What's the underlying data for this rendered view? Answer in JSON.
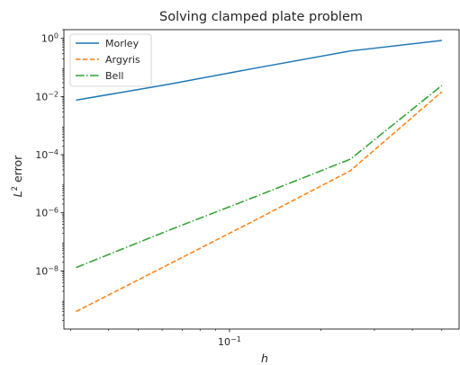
{
  "chart_data": {
    "type": "line",
    "title": "Solving clamped plate problem",
    "xlabel": "h",
    "ylabel": "L² error",
    "ylabel_parts": {
      "prefix": "L",
      "sup": "2",
      "suffix": " error"
    },
    "x_scale": "log",
    "y_scale": "log",
    "xlim": [
      0.0285,
      0.57
    ],
    "ylim": [
      1e-10,
      2.0
    ],
    "grid": false,
    "legend_position": "upper-left",
    "x_ticks": [
      {
        "value": 0.1,
        "base": "10",
        "exp": "−1"
      }
    ],
    "y_ticks": [
      {
        "value": 1e-08,
        "base": "10",
        "exp": "−8"
      },
      {
        "value": 1e-06,
        "base": "10",
        "exp": "−6"
      },
      {
        "value": 0.0001,
        "base": "10",
        "exp": "−4"
      },
      {
        "value": 0.01,
        "base": "10",
        "exp": "−2"
      },
      {
        "value": 1.0,
        "base": "10",
        "exp": "0"
      }
    ],
    "series": [
      {
        "name": "Morley",
        "color": "#1f77b4",
        "dash": "solid",
        "x": [
          0.03125,
          0.0625,
          0.125,
          0.25,
          0.5
        ],
        "y": [
          0.0075,
          0.026,
          0.1,
          0.37,
          0.85
        ]
      },
      {
        "name": "Argyris",
        "color": "#ff7f0e",
        "dash": "dashed",
        "x": [
          0.03125,
          0.0625,
          0.125,
          0.25,
          0.5
        ],
        "y": [
          4e-10,
          1.6e-08,
          6.5e-07,
          2.8e-05,
          0.0145
        ]
      },
      {
        "name": "Bell",
        "color": "#2ca02c",
        "dash": "dashdot",
        "x": [
          0.03125,
          0.0625,
          0.125,
          0.25,
          0.5
        ],
        "y": [
          1.3e-08,
          2.4e-07,
          4e-06,
          7e-05,
          0.024
        ]
      }
    ]
  }
}
